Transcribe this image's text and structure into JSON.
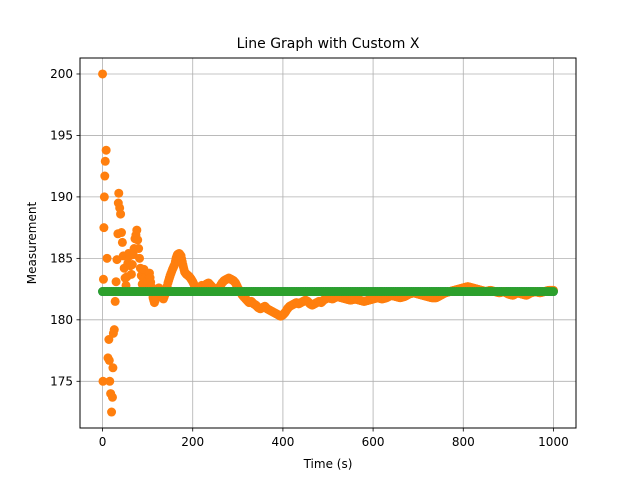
{
  "chart_data": {
    "type": "scatter",
    "title": "Line Graph with Custom X",
    "xlabel": "Time (s)",
    "ylabel": "Measurement",
    "xlim": [
      -50,
      1050
    ],
    "ylim": [
      171.2,
      201.3
    ],
    "xticks": [
      0,
      200,
      400,
      600,
      800,
      1000
    ],
    "yticks": [
      175,
      180,
      185,
      190,
      195,
      200
    ],
    "grid": true,
    "series": [
      {
        "color": "#1f77b4",
        "points": [
          [
            0,
            182.3
          ],
          [
            1000,
            182.3
          ]
        ]
      },
      {
        "color": "#ff7f0e",
        "points": [
          [
            0,
            200.0
          ],
          [
            1,
            175.0
          ],
          [
            2,
            183.3
          ],
          [
            3,
            187.5
          ],
          [
            4,
            190.0
          ],
          [
            5,
            191.7
          ],
          [
            6,
            192.9
          ],
          [
            8,
            193.8
          ],
          [
            10,
            185.0
          ],
          [
            12,
            176.9
          ],
          [
            14,
            178.4
          ],
          [
            15,
            176.7
          ],
          [
            16,
            175.0
          ],
          [
            18,
            174.0
          ],
          [
            20,
            172.5
          ],
          [
            22,
            173.7
          ],
          [
            23,
            176.1
          ],
          [
            24,
            178.9
          ],
          [
            26,
            179.2
          ],
          [
            28,
            181.5
          ],
          [
            30,
            183.1
          ],
          [
            32,
            184.9
          ],
          [
            34,
            187.0
          ],
          [
            35,
            189.5
          ],
          [
            36,
            190.3
          ],
          [
            38,
            189.1
          ],
          [
            40,
            188.6
          ],
          [
            42,
            187.1
          ],
          [
            44,
            186.3
          ],
          [
            46,
            185.2
          ],
          [
            48,
            184.2
          ],
          [
            50,
            183.4
          ],
          [
            52,
            182.8
          ],
          [
            54,
            183.5
          ],
          [
            56,
            184.6
          ],
          [
            58,
            185.4
          ],
          [
            60,
            185.2
          ],
          [
            62,
            184.4
          ],
          [
            64,
            183.7
          ],
          [
            66,
            184.5
          ],
          [
            68,
            185.3
          ],
          [
            70,
            185.8
          ],
          [
            72,
            186.6
          ],
          [
            74,
            186.9
          ],
          [
            76,
            187.3
          ],
          [
            78,
            186.5
          ],
          [
            80,
            185.8
          ],
          [
            82,
            185.0
          ],
          [
            84,
            184.2
          ],
          [
            86,
            183.6
          ],
          [
            88,
            182.9
          ],
          [
            90,
            183.4
          ],
          [
            92,
            184.1
          ],
          [
            94,
            183.4
          ],
          [
            96,
            182.8
          ],
          [
            98,
            182.6
          ],
          [
            100,
            183.2
          ],
          [
            104,
            183.8
          ],
          [
            108,
            182.7
          ],
          [
            112,
            181.8
          ],
          [
            115,
            181.4
          ],
          [
            120,
            181.9
          ],
          [
            125,
            182.6
          ],
          [
            130,
            182.1
          ],
          [
            135,
            181.7
          ],
          [
            140,
            182.2
          ],
          [
            145,
            183.0
          ],
          [
            150,
            183.6
          ],
          [
            155,
            184.1
          ],
          [
            160,
            184.5
          ],
          [
            163,
            185.0
          ],
          [
            166,
            185.3
          ],
          [
            170,
            185.4
          ],
          [
            174,
            185.2
          ],
          [
            178,
            184.5
          ],
          [
            182,
            183.9
          ],
          [
            186,
            183.7
          ],
          [
            190,
            183.6
          ],
          [
            195,
            183.4
          ],
          [
            200,
            183.1
          ],
          [
            205,
            182.7
          ],
          [
            210,
            182.4
          ],
          [
            215,
            182.6
          ],
          [
            220,
            182.8
          ],
          [
            225,
            182.6
          ],
          [
            230,
            182.9
          ],
          [
            235,
            183.0
          ],
          [
            240,
            182.8
          ],
          [
            245,
            182.6
          ],
          [
            250,
            182.4
          ],
          [
            255,
            182.5
          ],
          [
            260,
            182.7
          ],
          [
            265,
            183.0
          ],
          [
            270,
            183.2
          ],
          [
            275,
            183.3
          ],
          [
            280,
            183.4
          ],
          [
            285,
            183.3
          ],
          [
            290,
            183.2
          ],
          [
            295,
            183.0
          ],
          [
            300,
            182.6
          ],
          [
            305,
            182.3
          ],
          [
            310,
            182.0
          ],
          [
            315,
            181.8
          ],
          [
            320,
            181.6
          ],
          [
            325,
            181.4
          ],
          [
            330,
            181.5
          ],
          [
            335,
            181.3
          ],
          [
            340,
            181.2
          ],
          [
            345,
            181.0
          ],
          [
            350,
            180.9
          ],
          [
            355,
            181.0
          ],
          [
            360,
            181.1
          ],
          [
            365,
            180.9
          ],
          [
            370,
            180.8
          ],
          [
            375,
            180.7
          ],
          [
            380,
            180.6
          ],
          [
            385,
            180.5
          ],
          [
            390,
            180.4
          ],
          [
            395,
            180.3
          ],
          [
            400,
            180.4
          ],
          [
            405,
            180.6
          ],
          [
            410,
            180.9
          ],
          [
            415,
            181.1
          ],
          [
            420,
            181.2
          ],
          [
            425,
            181.3
          ],
          [
            430,
            181.4
          ],
          [
            435,
            181.3
          ],
          [
            440,
            181.4
          ],
          [
            445,
            181.5
          ],
          [
            450,
            181.6
          ],
          [
            455,
            181.5
          ],
          [
            460,
            181.3
          ],
          [
            465,
            181.2
          ],
          [
            470,
            181.3
          ],
          [
            475,
            181.4
          ],
          [
            480,
            181.5
          ],
          [
            485,
            181.4
          ],
          [
            490,
            181.6
          ],
          [
            495,
            181.7
          ],
          [
            500,
            181.8
          ],
          [
            510,
            181.7
          ],
          [
            520,
            181.9
          ],
          [
            530,
            181.8
          ],
          [
            540,
            181.7
          ],
          [
            550,
            181.6
          ],
          [
            560,
            181.7
          ],
          [
            570,
            181.6
          ],
          [
            580,
            181.5
          ],
          [
            590,
            181.6
          ],
          [
            600,
            181.7
          ],
          [
            610,
            181.8
          ],
          [
            620,
            181.7
          ],
          [
            630,
            181.8
          ],
          [
            640,
            182.0
          ],
          [
            650,
            181.9
          ],
          [
            660,
            181.8
          ],
          [
            670,
            181.9
          ],
          [
            680,
            182.1
          ],
          [
            690,
            182.2
          ],
          [
            700,
            182.1
          ],
          [
            710,
            182.0
          ],
          [
            720,
            181.9
          ],
          [
            730,
            181.8
          ],
          [
            740,
            181.8
          ],
          [
            750,
            182.0
          ],
          [
            760,
            182.2
          ],
          [
            770,
            182.3
          ],
          [
            780,
            182.4
          ],
          [
            790,
            182.5
          ],
          [
            800,
            182.6
          ],
          [
            810,
            182.7
          ],
          [
            820,
            182.6
          ],
          [
            830,
            182.5
          ],
          [
            840,
            182.4
          ],
          [
            850,
            182.3
          ],
          [
            860,
            182.4
          ],
          [
            870,
            182.3
          ],
          [
            880,
            182.2
          ],
          [
            890,
            182.3
          ],
          [
            900,
            182.1
          ],
          [
            910,
            182.0
          ],
          [
            920,
            182.2
          ],
          [
            930,
            182.1
          ],
          [
            940,
            182.0
          ],
          [
            950,
            182.2
          ],
          [
            960,
            182.3
          ],
          [
            970,
            182.2
          ],
          [
            980,
            182.3
          ],
          [
            990,
            182.4
          ],
          [
            1000,
            182.4
          ]
        ]
      },
      {
        "color": "#2ca02c",
        "points": [
          [
            0,
            182.3
          ],
          [
            1000,
            182.3
          ]
        ]
      }
    ]
  }
}
